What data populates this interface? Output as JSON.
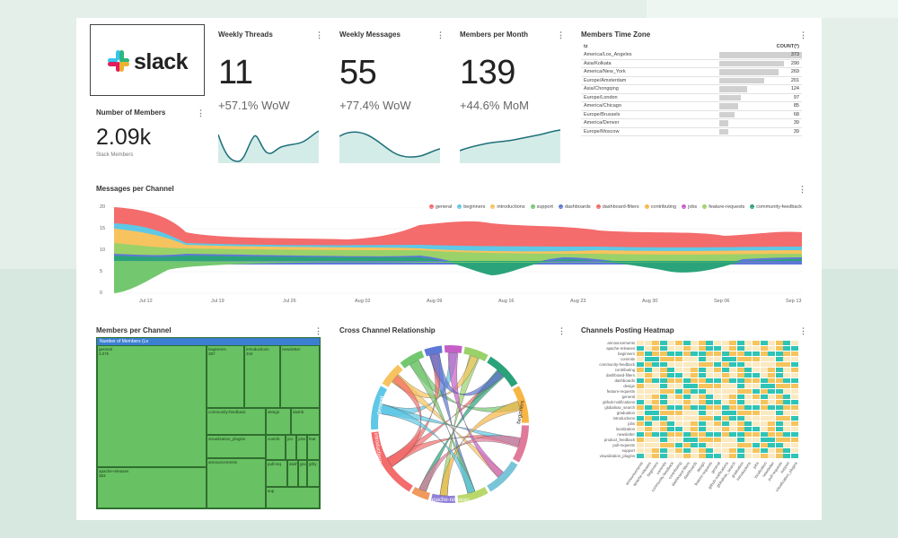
{
  "brand": {
    "name": "slack"
  },
  "kpis": {
    "members": {
      "title": "Number of Members",
      "value": "2.09k",
      "subtitle": "Slack Members"
    },
    "threads": {
      "title": "Weekly Threads",
      "value": "11",
      "change": "+57.1% WoW"
    },
    "messages": {
      "title": "Weekly Messages",
      "value": "55",
      "change": "+77.4% WoW"
    },
    "monthly": {
      "title": "Members per Month",
      "value": "139",
      "change": "+44.6% MoM"
    }
  },
  "menu_icon": "⋮",
  "timezone": {
    "title": "Members Time Zone",
    "col_name": "tz",
    "col_count": "COUNT(*)",
    "max": 373,
    "rows": [
      {
        "tz": "America/Los_Angeles",
        "count": 373
      },
      {
        "tz": "Asia/Kolkata",
        "count": 290
      },
      {
        "tz": "America/New_York",
        "count": 269
      },
      {
        "tz": "Europe/Amsterdam",
        "count": 201
      },
      {
        "tz": "Asia/Chongqing",
        "count": 124
      },
      {
        "tz": "Europe/London",
        "count": 97
      },
      {
        "tz": "America/Chicago",
        "count": 85
      },
      {
        "tz": "Europe/Brussels",
        "count": 68
      },
      {
        "tz": "America/Denver",
        "count": 39
      },
      {
        "tz": "Europe/Moscow",
        "count": 39
      }
    ]
  },
  "messages_chart": {
    "title": "Messages per Channel",
    "legend": [
      {
        "name": "general",
        "color": "#f46c6c"
      },
      {
        "name": "beginners",
        "color": "#5ec8e6"
      },
      {
        "name": "introductions",
        "color": "#f7c35f"
      },
      {
        "name": "support",
        "color": "#73c86f"
      },
      {
        "name": "dashboards",
        "color": "#5e78d6"
      },
      {
        "name": "dashboard-filters",
        "color": "#ef6b6b"
      },
      {
        "name": "contributing",
        "color": "#f7b644"
      },
      {
        "name": "jobs",
        "color": "#c65ec6"
      },
      {
        "name": "feature-requests",
        "color": "#9bd169"
      },
      {
        "name": "community-feedback",
        "color": "#2aa37a"
      }
    ],
    "y_ticks": [
      "20",
      "15",
      "10",
      "5",
      "0"
    ],
    "x_ticks": [
      "Jul 12",
      "Jul 19",
      "Jul 26",
      "Aug 02",
      "Aug 09",
      "Aug 16",
      "Aug 23",
      "Aug 30",
      "Sep 06",
      "Sep 13"
    ]
  },
  "treemap": {
    "title": "Members per Channel",
    "header": "Number of Members (Lo",
    "cells": [
      {
        "name": "general",
        "value": "2.07k"
      },
      {
        "name": "apache-releases",
        "value": "353"
      },
      {
        "name": "beginners",
        "value": "387"
      },
      {
        "name": "introductions",
        "value": "344"
      },
      {
        "name": "newsletter",
        "value": ""
      },
      {
        "name": "community-feedback",
        "value": ""
      },
      {
        "name": "design",
        "value": ""
      },
      {
        "name": "dashb",
        "value": ""
      },
      {
        "name": "visualization_plugins",
        "value": ""
      },
      {
        "name": "announcements",
        "value": ""
      },
      {
        "name": "contrib",
        "value": ""
      },
      {
        "name": "pro",
        "value": ""
      },
      {
        "name": "jobs",
        "value": ""
      },
      {
        "name": "feat",
        "value": ""
      },
      {
        "name": "pull-req",
        "value": ""
      },
      {
        "name": "dash",
        "value": ""
      },
      {
        "name": "gsc",
        "value": ""
      },
      {
        "name": "gthy",
        "value": ""
      },
      {
        "name": "sup",
        "value": ""
      }
    ]
  },
  "chord": {
    "title": "Cross Channel Relationship",
    "labels": [
      "general",
      "introductions",
      "apache-releases",
      "beginners"
    ]
  },
  "heatmap": {
    "title": "Channels Posting Heatmap",
    "rows": [
      "announcements",
      "apache-releases",
      "beginners",
      "commits",
      "community-feedback",
      "contributing",
      "dashboard-filters",
      "dashboards",
      "design",
      "feature-requests",
      "general",
      "github-notifications",
      "globalnav_search",
      "graduation",
      "introductions",
      "jobs",
      "localization",
      "newsletter",
      "product_feedback",
      "pull-requests",
      "support",
      "visualization_plugins"
    ],
    "cols": [
      "announcements",
      "apache-releases",
      "beginners",
      "commits",
      "community-feedback",
      "contributing",
      "dashboard-filters",
      "dashboards",
      "design",
      "feature-requests",
      "general",
      "github-notifications",
      "globalnav_search",
      "graduation",
      "introductions",
      "jobs",
      "localization",
      "newsletter",
      "pull-requests",
      "support",
      "visualization_plugins"
    ],
    "colors": {
      "low": "#ffffff",
      "mid": "#f6c45c",
      "high": "#2ec4b6"
    }
  }
}
